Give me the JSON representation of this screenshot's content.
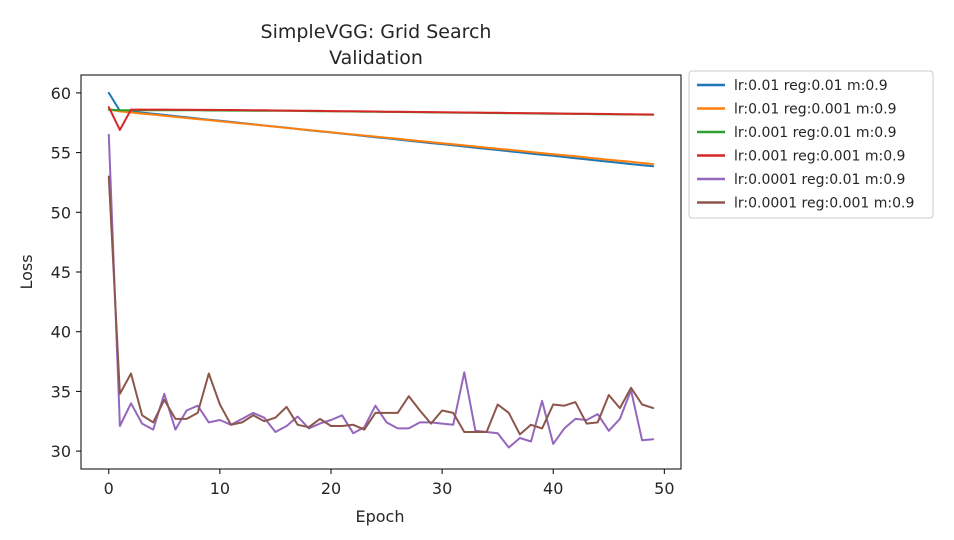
{
  "chart_data": {
    "type": "line",
    "title": "SimpleVGG: Grid Search",
    "subtitle": "Validation",
    "xlabel": "Epoch",
    "ylabel": "Loss",
    "xlim": [
      -2.5,
      51.5
    ],
    "ylim": [
      28.5,
      61.5
    ],
    "xticks": [
      0,
      10,
      20,
      30,
      40,
      50
    ],
    "yticks": [
      30,
      35,
      40,
      45,
      50,
      55,
      60
    ],
    "grid": false,
    "legend_position": "outside-right",
    "x": [
      0,
      1,
      2,
      3,
      4,
      5,
      6,
      7,
      8,
      9,
      10,
      11,
      12,
      13,
      14,
      15,
      16,
      17,
      18,
      19,
      20,
      21,
      22,
      23,
      24,
      25,
      26,
      27,
      28,
      29,
      30,
      31,
      32,
      33,
      34,
      35,
      36,
      37,
      38,
      39,
      40,
      41,
      42,
      43,
      44,
      45,
      46,
      47,
      48,
      49
    ],
    "series": [
      {
        "name": "lr:0.01 reg:0.01 m:0.9",
        "color": "#1f77b4",
        "values": [
          60.0,
          58.5,
          58.45,
          58.35,
          58.25,
          58.16,
          58.06,
          57.96,
          57.86,
          57.76,
          57.67,
          57.57,
          57.47,
          57.37,
          57.27,
          57.18,
          57.08,
          56.98,
          56.88,
          56.78,
          56.69,
          56.59,
          56.49,
          56.39,
          56.29,
          56.2,
          56.1,
          56.0,
          55.9,
          55.8,
          55.71,
          55.61,
          55.51,
          55.41,
          55.31,
          55.22,
          55.12,
          55.02,
          54.92,
          54.82,
          54.73,
          54.63,
          54.53,
          54.43,
          54.33,
          54.24,
          54.14,
          54.04,
          53.94,
          53.85
        ]
      },
      {
        "name": "lr:0.01 reg:0.001 m:0.9",
        "color": "#ff7f0e",
        "values": [
          58.6,
          58.45,
          58.36,
          58.27,
          58.18,
          58.08,
          57.99,
          57.9,
          57.81,
          57.72,
          57.63,
          57.53,
          57.44,
          57.35,
          57.26,
          57.17,
          57.07,
          56.98,
          56.89,
          56.8,
          56.71,
          56.61,
          56.52,
          56.43,
          56.34,
          56.25,
          56.16,
          56.06,
          55.97,
          55.88,
          55.79,
          55.7,
          55.6,
          55.51,
          55.42,
          55.33,
          55.24,
          55.14,
          55.05,
          54.96,
          54.87,
          54.78,
          54.69,
          54.59,
          54.5,
          54.41,
          54.32,
          54.23,
          54.13,
          54.04
        ]
      },
      {
        "name": "lr:0.001 reg:0.01 m:0.9",
        "color": "#2ca02c",
        "values": [
          58.6,
          58.55,
          58.55,
          58.55,
          58.55,
          58.55,
          58.54,
          58.54,
          58.54,
          58.53,
          58.53,
          58.52,
          58.52,
          58.51,
          58.51,
          58.5,
          58.5,
          58.49,
          58.48,
          58.47,
          58.46,
          58.45,
          58.44,
          58.43,
          58.42,
          58.41,
          58.4,
          58.39,
          58.38,
          58.37,
          58.36,
          58.35,
          58.34,
          58.33,
          58.32,
          58.31,
          58.3,
          58.29,
          58.28,
          58.27,
          58.26,
          58.25,
          58.24,
          58.23,
          58.22,
          58.21,
          58.2,
          58.19,
          58.18,
          58.17
        ]
      },
      {
        "name": "lr:0.001 reg:0.001 m:0.9",
        "color": "#d62728",
        "values": [
          58.8,
          56.9,
          58.6,
          58.6,
          58.6,
          58.6,
          58.59,
          58.59,
          58.58,
          58.58,
          58.57,
          58.57,
          58.56,
          58.55,
          58.54,
          58.53,
          58.52,
          58.51,
          58.5,
          58.49,
          58.48,
          58.47,
          58.46,
          58.45,
          58.44,
          58.43,
          58.42,
          58.41,
          58.4,
          58.39,
          58.38,
          58.37,
          58.36,
          58.35,
          58.34,
          58.33,
          58.32,
          58.31,
          58.3,
          58.29,
          58.28,
          58.27,
          58.26,
          58.25,
          58.24,
          58.23,
          58.22,
          58.21,
          58.2,
          58.19
        ]
      },
      {
        "name": "lr:0.0001 reg:0.01 m:0.9",
        "color": "#9467bd",
        "values": [
          56.5,
          32.1,
          34.0,
          32.3,
          31.8,
          34.8,
          31.8,
          33.4,
          33.8,
          32.4,
          32.6,
          32.2,
          32.7,
          33.2,
          32.8,
          31.6,
          32.1,
          32.9,
          31.9,
          32.3,
          32.6,
          33.0,
          31.5,
          32.0,
          33.8,
          32.4,
          31.9,
          31.9,
          32.4,
          32.4,
          32.3,
          32.2,
          36.6,
          31.7,
          31.6,
          31.5,
          30.3,
          31.1,
          30.8,
          34.2,
          30.6,
          31.9,
          32.7,
          32.6,
          33.1,
          31.7,
          32.7,
          35.1,
          30.9,
          31.0
        ]
      },
      {
        "name": "lr:0.0001 reg:0.001 m:0.9",
        "color": "#8c564b",
        "values": [
          53.0,
          34.8,
          36.5,
          33.0,
          32.4,
          34.3,
          32.7,
          32.7,
          33.2,
          36.5,
          33.9,
          32.2,
          32.4,
          33.0,
          32.5,
          32.8,
          33.7,
          32.2,
          32.0,
          32.7,
          32.1,
          32.1,
          32.2,
          31.8,
          33.2,
          33.2,
          33.2,
          34.6,
          33.4,
          32.3,
          33.4,
          33.2,
          31.6,
          31.6,
          31.6,
          33.9,
          33.2,
          31.4,
          32.2,
          31.9,
          33.9,
          33.8,
          34.1,
          32.3,
          32.4,
          34.7,
          33.6,
          35.3,
          33.9,
          33.6
        ]
      }
    ]
  }
}
